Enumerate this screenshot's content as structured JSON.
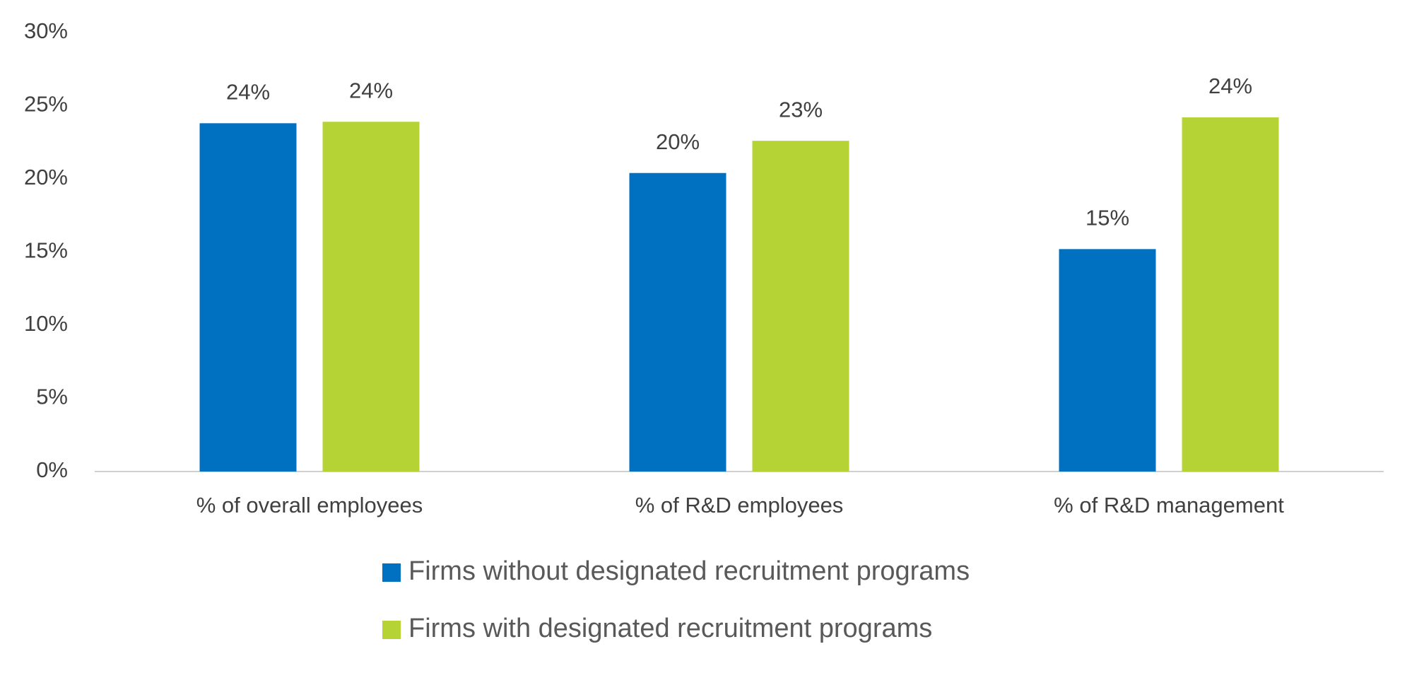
{
  "chart_data": {
    "type": "bar",
    "categories": [
      "% of overall employees",
      "% of R&D employees",
      "% of R&D management"
    ],
    "series": [
      {
        "name": "Firms without designated recruitment programs",
        "color": "#0070c0",
        "values": [
          23.8,
          20.4,
          15.2
        ],
        "value_labels": [
          "24%",
          "20%",
          "15%"
        ]
      },
      {
        "name": "Firms with designated recruitment programs",
        "color": "#b5d334",
        "values": [
          23.9,
          22.6,
          24.2
        ],
        "value_labels": [
          "24%",
          "23%",
          "24%"
        ]
      }
    ],
    "ylim": [
      0,
      30
    ],
    "yticks": [
      {
        "value": 0,
        "label": "0%"
      },
      {
        "value": 5,
        "label": "5%"
      },
      {
        "value": 10,
        "label": "10%"
      },
      {
        "value": 15,
        "label": "15%"
      },
      {
        "value": 20,
        "label": "20%"
      },
      {
        "value": 25,
        "label": "25%"
      },
      {
        "value": 30,
        "label": "30%"
      }
    ],
    "grid": false,
    "legend": "bottom"
  }
}
